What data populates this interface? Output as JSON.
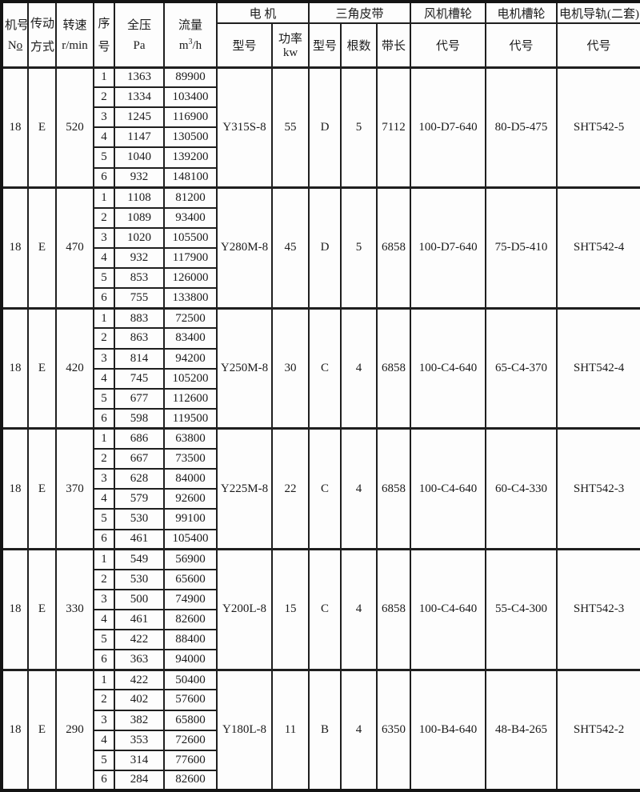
{
  "header": {
    "machine_no_line1": "机号",
    "machine_no_n": "N",
    "machine_no_o": "o",
    "transmission_line1": "传动",
    "transmission_line2": "方式",
    "speed_line1": "转速",
    "speed_line2": "r/min",
    "seq_line1": "序",
    "seq_line2": "号",
    "pressure_line1": "全压",
    "pressure_line2": "Pa",
    "flow_line1": "流量",
    "flow_unit_base": "m",
    "flow_unit_sup": "3",
    "flow_unit_rest": "/h",
    "motor_group": "电 机",
    "motor_model": "型号",
    "motor_power_line1": "功率",
    "motor_power_line2": "kw",
    "belt_group": "三角皮带",
    "belt_model": "型号",
    "belt_count": "根数",
    "belt_length": "带长",
    "fan_pulley_group": "风机槽轮",
    "fan_pulley_code": "代号",
    "motor_pulley_group": "电机槽轮",
    "motor_pulley_code": "代号",
    "rail_group": "电机导轨(二套)",
    "rail_code": "代号"
  },
  "blocks": [
    {
      "machine_no": "18",
      "transmission": "E",
      "speed": "520",
      "motor_model": "Y315S-8",
      "motor_power": "55",
      "belt_model": "D",
      "belt_count": "5",
      "belt_length": "7112",
      "fan_pulley": "100-D7-640",
      "motor_pulley": "80-D5-475",
      "rail": "SHT542-5",
      "rows": [
        {
          "seq": "1",
          "pressure": "1363",
          "flow": "89900"
        },
        {
          "seq": "2",
          "pressure": "1334",
          "flow": "103400"
        },
        {
          "seq": "3",
          "pressure": "1245",
          "flow": "116900"
        },
        {
          "seq": "4",
          "pressure": "1147",
          "flow": "130500"
        },
        {
          "seq": "5",
          "pressure": "1040",
          "flow": "139200"
        },
        {
          "seq": "6",
          "pressure": "932",
          "flow": "148100"
        }
      ]
    },
    {
      "machine_no": "18",
      "transmission": "E",
      "speed": "470",
      "motor_model": "Y280M-8",
      "motor_power": "45",
      "belt_model": "D",
      "belt_count": "5",
      "belt_length": "6858",
      "fan_pulley": "100-D7-640",
      "motor_pulley": "75-D5-410",
      "rail": "SHT542-4",
      "rows": [
        {
          "seq": "1",
          "pressure": "1108",
          "flow": "81200"
        },
        {
          "seq": "2",
          "pressure": "1089",
          "flow": "93400"
        },
        {
          "seq": "3",
          "pressure": "1020",
          "flow": "105500"
        },
        {
          "seq": "4",
          "pressure": "932",
          "flow": "117900"
        },
        {
          "seq": "5",
          "pressure": "853",
          "flow": "126000"
        },
        {
          "seq": "6",
          "pressure": "755",
          "flow": "133800"
        }
      ]
    },
    {
      "machine_no": "18",
      "transmission": "E",
      "speed": "420",
      "motor_model": "Y250M-8",
      "motor_power": "30",
      "belt_model": "C",
      "belt_count": "4",
      "belt_length": "6858",
      "fan_pulley": "100-C4-640",
      "motor_pulley": "65-C4-370",
      "rail": "SHT542-4",
      "rows": [
        {
          "seq": "1",
          "pressure": "883",
          "flow": "72500"
        },
        {
          "seq": "2",
          "pressure": "863",
          "flow": "83400"
        },
        {
          "seq": "3",
          "pressure": "814",
          "flow": "94200",
          "bold": true
        },
        {
          "seq": "4",
          "pressure": "745",
          "flow": "105200"
        },
        {
          "seq": "5",
          "pressure": "677",
          "flow": "112600"
        },
        {
          "seq": "6",
          "pressure": "598",
          "flow": "119500"
        }
      ]
    },
    {
      "machine_no": "18",
      "transmission": "E",
      "speed": "370",
      "motor_model": "Y225M-8",
      "motor_power": "22",
      "belt_model": "C",
      "belt_count": "4",
      "belt_length": "6858",
      "fan_pulley": "100-C4-640",
      "motor_pulley": "60-C4-330",
      "rail": "SHT542-3",
      "rows": [
        {
          "seq": "1",
          "pressure": "686",
          "flow": "63800"
        },
        {
          "seq": "2",
          "pressure": "667",
          "flow": "73500"
        },
        {
          "seq": "3",
          "pressure": "628",
          "flow": "84000"
        },
        {
          "seq": "4",
          "pressure": "579",
          "flow": "92600"
        },
        {
          "seq": "5",
          "pressure": "530",
          "flow": "99100"
        },
        {
          "seq": "6",
          "pressure": "461",
          "flow": "105400"
        }
      ]
    },
    {
      "machine_no": "18",
      "transmission": "E",
      "speed": "330",
      "motor_model": "Y200L-8",
      "motor_power": "15",
      "belt_model": "C",
      "belt_count": "4",
      "belt_length": "6858",
      "fan_pulley": "100-C4-640",
      "motor_pulley": "55-C4-300",
      "rail": "SHT542-3",
      "rows": [
        {
          "seq": "1",
          "pressure": "549",
          "flow": "56900"
        },
        {
          "seq": "2",
          "pressure": "530",
          "flow": "65600"
        },
        {
          "seq": "3",
          "pressure": "500",
          "flow": "74900"
        },
        {
          "seq": "4",
          "pressure": "461",
          "flow": "82600"
        },
        {
          "seq": "5",
          "pressure": "422",
          "flow": "88400"
        },
        {
          "seq": "6",
          "pressure": "363",
          "flow": "94000"
        }
      ]
    },
    {
      "machine_no": "18",
      "transmission": "E",
      "speed": "290",
      "motor_model": "Y180L-8",
      "motor_power": "11",
      "belt_model": "B",
      "belt_count": "4",
      "belt_length": "6350",
      "fan_pulley": "100-B4-640",
      "motor_pulley": "48-B4-265",
      "rail": "SHT542-2",
      "rows": [
        {
          "seq": "1",
          "pressure": "422",
          "flow": "50400"
        },
        {
          "seq": "2",
          "pressure": "402",
          "flow": "57600"
        },
        {
          "seq": "3",
          "pressure": "382",
          "flow": "65800"
        },
        {
          "seq": "4",
          "pressure": "353",
          "flow": "72600"
        },
        {
          "seq": "5",
          "pressure": "314",
          "flow": "77600"
        },
        {
          "seq": "6",
          "pressure": "284",
          "flow": "82600"
        }
      ]
    }
  ]
}
